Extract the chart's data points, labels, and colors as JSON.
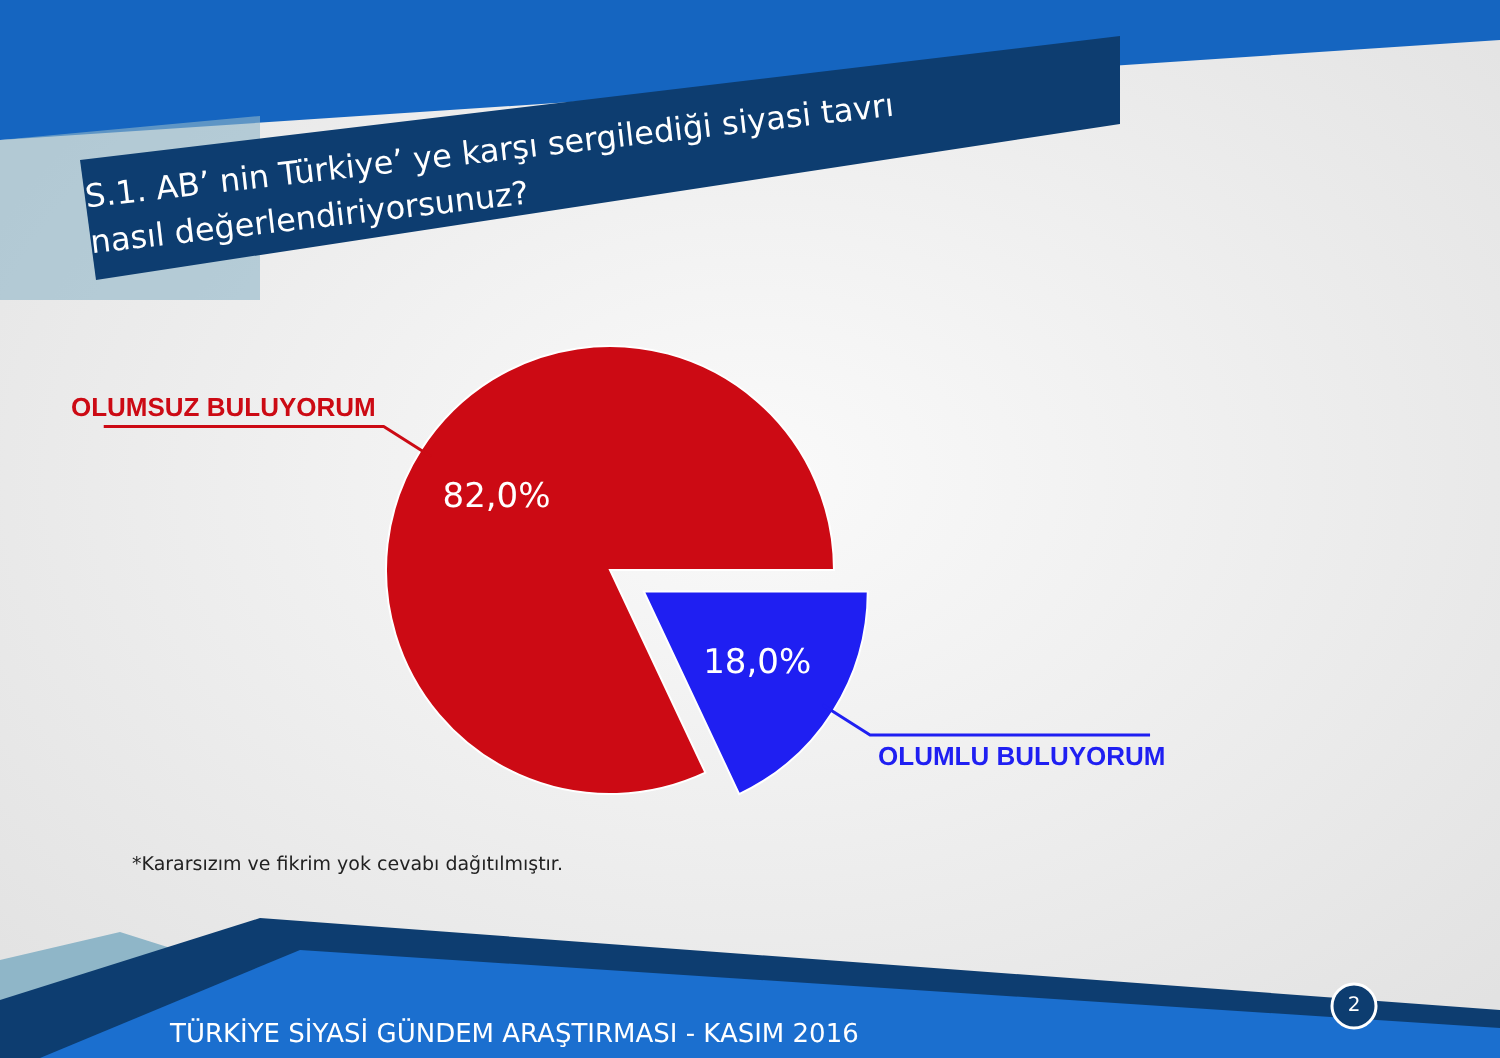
{
  "chart_data": {
    "type": "pie",
    "title": "S.1. AB’ nin Türkiye’ ye karşı sergilediği siyasi tavrı\nnasıl değerlendiriyorsunuz?",
    "categories": [
      "OLUMSUZ BULUYORUM",
      "OLUMLU BULUYORUM"
    ],
    "values": [
      82,
      18
    ],
    "colors": [
      "#cc0a14",
      "#1f1ff2"
    ],
    "value_labels": [
      "82,0%",
      "18,0%"
    ],
    "annotations": [
      "*Kararsızım ve fikrim yok cevabı dağıtılmıştır.",
      "TÜRKİYE SİYASİ GÜNDEM ARAŞTIRMASI  - KASIM 2016",
      "2"
    ]
  }
}
